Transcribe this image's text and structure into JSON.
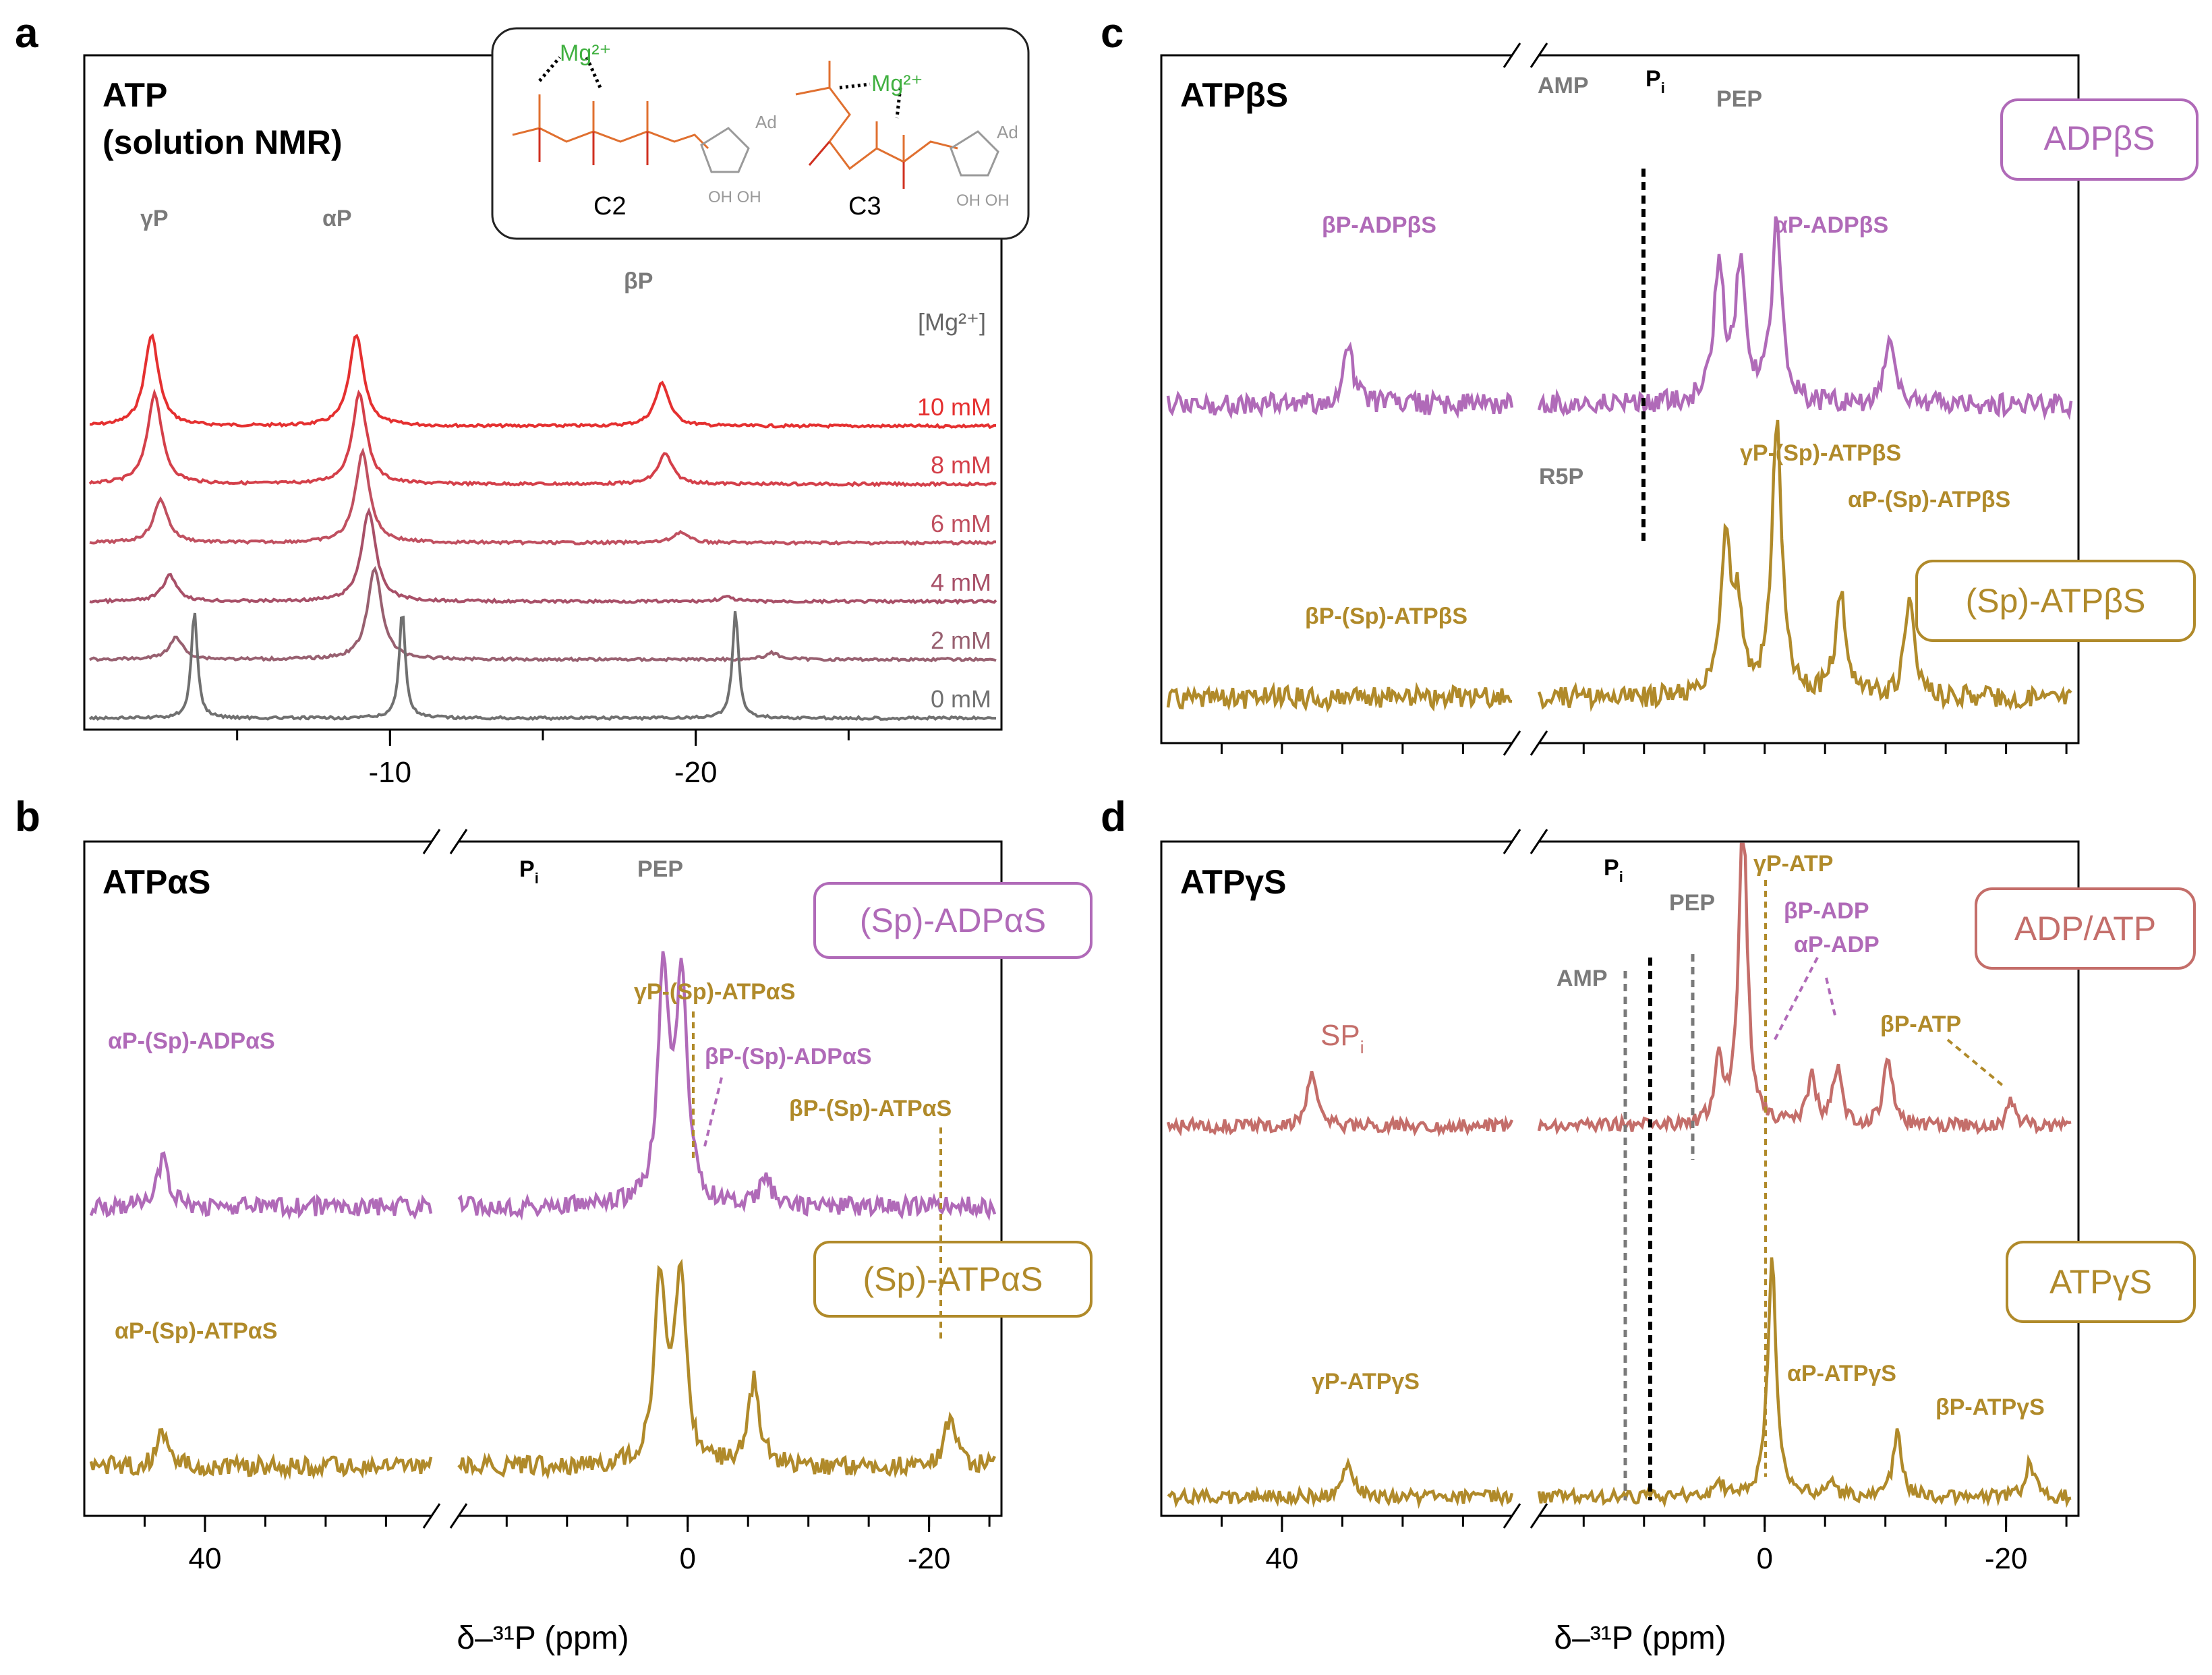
{
  "colors": {
    "gold": "#b08a2a",
    "purple": "#b06ab8",
    "salmon": "#c46e6a",
    "gray": "#7a7a7a",
    "mg": [
      "#e53030",
      "#d4404a",
      "#c05060",
      "#a85068",
      "#986070",
      "#707070"
    ],
    "chem_orange": "#e07030",
    "chem_red": "#d03020",
    "chem_green": "#40b040",
    "chem_gray": "#9a9a9a"
  },
  "axis_title": "δ–³¹P (ppm)",
  "chart_data": [
    {
      "id": "a",
      "letter": "a",
      "type": "line",
      "title_lines": [
        "ATP",
        "(solution NMR)"
      ],
      "xlim": [
        0,
        -30
      ],
      "xticks": [
        -10,
        -20
      ],
      "mg_header": "[Mg²⁺]",
      "series": [
        {
          "name": "10 mM",
          "peaks": [
            [
              -2.2,
              0.42
            ],
            [
              -8.9,
              0.42
            ],
            [
              -18.9,
              0.2
            ]
          ]
        },
        {
          "name": "8 mM",
          "peaks": [
            [
              -2.3,
              0.42
            ],
            [
              -9.0,
              0.42
            ],
            [
              -19.0,
              0.14
            ]
          ]
        },
        {
          "name": "6 mM",
          "peaks": [
            [
              -2.5,
              0.2
            ],
            [
              -9.1,
              0.42
            ],
            [
              -19.5,
              0.05
            ]
          ]
        },
        {
          "name": "4 mM",
          "peaks": [
            [
              -2.8,
              0.12
            ],
            [
              -9.3,
              0.42
            ],
            [
              -21.0,
              0.02
            ]
          ]
        },
        {
          "name": "2 mM",
          "peaks": [
            [
              -3.0,
              0.1
            ],
            [
              -9.5,
              0.42
            ],
            [
              -22.5,
              0.03
            ]
          ]
        },
        {
          "name": "0 mM",
          "peaks": [
            [
              -3.6,
              0.5
            ],
            [
              -10.4,
              0.5
            ],
            [
              -21.3,
              0.5
            ]
          ]
        }
      ],
      "peak_labels": [
        "γP",
        "αP",
        "βP"
      ],
      "structures": {
        "c2": "C2",
        "c3": "C3",
        "mg": "Mg²⁺",
        "ad": "Ad",
        "oh": "OH OH"
      }
    },
    {
      "id": "b",
      "letter": "b",
      "type": "line",
      "title": "ATPαS",
      "xlim": [
        50,
        -26
      ],
      "xticks": [
        40,
        0,
        -20
      ],
      "xtick_labels": [
        "40",
        "0",
        "-20"
      ],
      "series": [
        {
          "name": "(Sp)-ADPαS",
          "peaks": [
            [
              43.5,
              0.25
            ],
            [
              2.0,
              1.2
            ],
            [
              0.5,
              1.2
            ],
            [
              -6.5,
              0.15
            ],
            [
              -22,
              0.02
            ]
          ]
        },
        {
          "name": "(Sp)-ATPαS",
          "peaks": [
            [
              43.5,
              0.18
            ],
            [
              2.3,
              1.0
            ],
            [
              0.6,
              1.0
            ],
            [
              -5.5,
              0.45
            ],
            [
              -21.8,
              0.28
            ]
          ]
        }
      ],
      "labels": {
        "pi": "P",
        "pi_sub": "i",
        "pep": "PEP",
        "box_top": "(Sp)-ADPαS",
        "box_bottom": "(Sp)-ATPαS",
        "l1": "αP-(Sp)-ADPαS",
        "l2": "γP-(Sp)-ATPαS",
        "l3": "βP-(Sp)-ADPαS",
        "l4": "βP-(Sp)-ATPαS",
        "l5": "αP-(Sp)-ATPαS"
      }
    },
    {
      "id": "c",
      "letter": "c",
      "type": "line",
      "title": "ATPβS",
      "xlim": [
        50,
        -26
      ],
      "xticks": [
        40,
        0,
        -20
      ],
      "series": [
        {
          "name": "ADPβS",
          "peaks": [
            [
              34.5,
              0.18
            ],
            [
              3.8,
              0.45
            ],
            [
              2.0,
              0.45
            ],
            [
              -1.0,
              0.6
            ],
            [
              -10.3,
              0.2
            ]
          ]
        },
        {
          "name": "(Sp)-ATPβS",
          "peaks": [
            [
              3.2,
              0.5
            ],
            [
              2.2,
              0.25
            ],
            [
              -1.0,
              0.9
            ],
            [
              -6.3,
              0.35
            ],
            [
              -12.0,
              0.3
            ]
          ]
        }
      ],
      "labels": {
        "amp": "AMP",
        "pi": "P",
        "pi_sub": "i",
        "pep": "PEP",
        "r5p": "R5P",
        "box_top": "ADPβS",
        "box_bottom": "(Sp)-ATPβS",
        "l1": "βP-ADPβS",
        "l2": "αP-ADPβS",
        "l3": "γP-(Sp)-ATPβS",
        "l4": "αP-(Sp)-ATPβS",
        "l5": "βP-(Sp)-ATPβS"
      }
    },
    {
      "id": "d",
      "letter": "d",
      "type": "line",
      "title": "ATPγS",
      "xlim": [
        50,
        -26
      ],
      "xticks": [
        40,
        0,
        -20
      ],
      "xtick_labels": [
        "40",
        "0",
        "-20"
      ],
      "series": [
        {
          "name": "ADP/ATP",
          "peaks": [
            [
              37.5,
              0.18
            ],
            [
              3.8,
              0.2
            ],
            [
              1.8,
              1.0
            ],
            [
              -3.9,
              0.15
            ],
            [
              -6.0,
              0.18
            ],
            [
              -10.2,
              0.22
            ],
            [
              -20.5,
              0.08
            ]
          ]
        },
        {
          "name": "ATPγS",
          "peaks": [
            [
              34.5,
              0.12
            ],
            [
              3.8,
              0.05
            ],
            [
              -0.6,
              0.75
            ],
            [
              -5.5,
              0.05
            ],
            [
              -11.0,
              0.2
            ],
            [
              -22.0,
              0.11
            ]
          ]
        }
      ],
      "labels": {
        "pi": "P",
        "pi_sub": "i",
        "pep": "PEP",
        "amp": "AMP",
        "sp": "SP",
        "sp_sub": "i",
        "box_top": "ADP/ATP",
        "box_bottom": "ATPγS",
        "l1": "γP-ATP",
        "l2": "βP-ADP",
        "l3": "αP-ADP",
        "l4": "βP-ATP",
        "l5": "γP-ATPγS",
        "l6": "αP-ATPγS",
        "l7": "βP-ATPγS"
      }
    }
  ]
}
